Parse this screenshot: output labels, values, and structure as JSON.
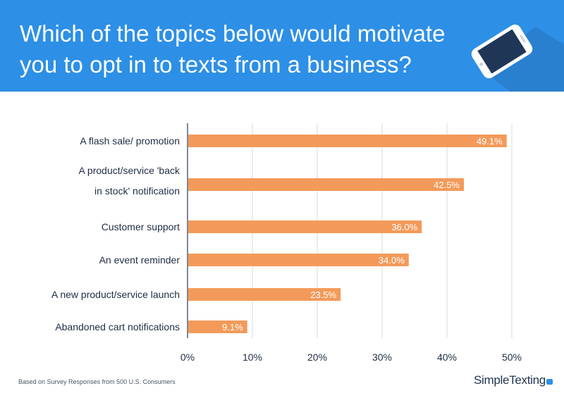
{
  "header": {
    "title": "Which of the topics below would motivate\nyou to opt in to texts from a business?",
    "icon": "smartphone-icon",
    "background": "#2d8fe6"
  },
  "chart_data": {
    "type": "bar",
    "orientation": "horizontal",
    "categories": [
      "A flash sale/ promotion",
      "A product/service 'back in stock' notification",
      "Customer support",
      "An event reminder",
      "A new product/service launch",
      "Abandoned cart notifications"
    ],
    "values": [
      49.1,
      42.5,
      36.0,
      34.0,
      23.5,
      9.1
    ],
    "value_labels": [
      "49.1%",
      "42.5%",
      "36.0%",
      "34.0%",
      "23.5%",
      "9.1%"
    ],
    "xlim": [
      0,
      50
    ],
    "x_ticks": [
      "0%",
      "10%",
      "20%",
      "30%",
      "40%",
      "50%"
    ],
    "grid": "vertical",
    "bar_color": "#f39a5a",
    "title": "",
    "xlabel": "",
    "ylabel": ""
  },
  "footer": {
    "note": "Based on Survey Responses from 500 U.S. Consumers",
    "brand": "SimpleTexting",
    "brand_icon": "chat-bubble-icon"
  }
}
